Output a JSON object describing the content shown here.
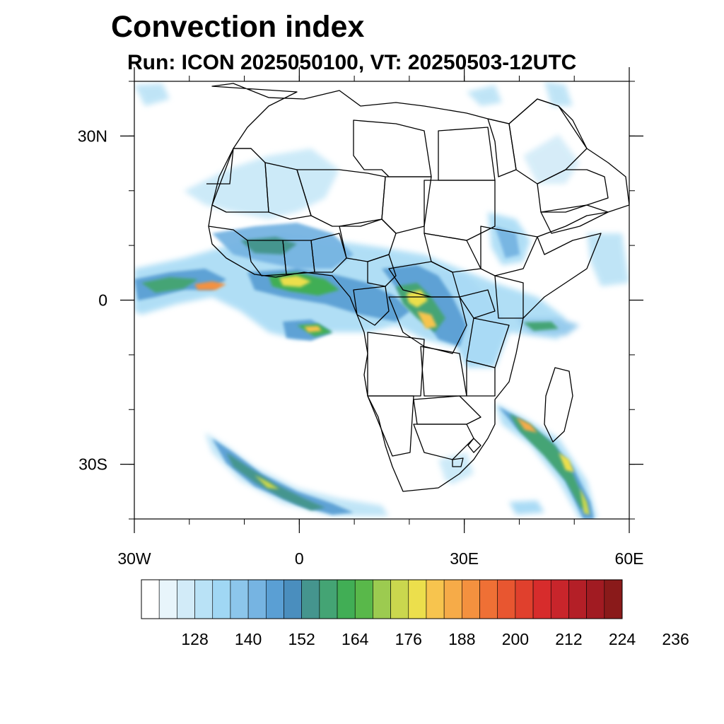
{
  "title": "Convection index",
  "subtitle": "Run: ICON 2025050100,  VT: 20250503-12UTC",
  "axes": {
    "lon_range": [
      -30,
      60
    ],
    "lat_range": [
      -40,
      40
    ],
    "lon_ticks": [
      {
        "value": -30,
        "label": "30W"
      },
      {
        "value": 0,
        "label": "0"
      },
      {
        "value": 30,
        "label": "30E"
      },
      {
        "value": 60,
        "label": "60E"
      }
    ],
    "lat_ticks": [
      {
        "value": 30,
        "label": "30N"
      },
      {
        "value": 0,
        "label": "0"
      },
      {
        "value": -30,
        "label": "30S"
      }
    ],
    "lon_minor_step": 10,
    "lat_minor_step": 10
  },
  "colorbar": {
    "colors": [
      "#ffffff",
      "#e8f5fb",
      "#d2ebf8",
      "#b9e2f6",
      "#a0d7f4",
      "#8cc6eb",
      "#76b4e2",
      "#5a9fd4",
      "#4a8ebe",
      "#45958e",
      "#44a474",
      "#41ae55",
      "#59b84a",
      "#9ccb50",
      "#cad74e",
      "#ecdf4c",
      "#f7c44e",
      "#f6ab48",
      "#f4913f",
      "#ef7035",
      "#e85630",
      "#e0402d",
      "#d72c2c",
      "#c8252b",
      "#b41f27",
      "#a11b22",
      "#8a1a1a"
    ],
    "labels": [
      "128",
      "140",
      "152",
      "164",
      "176",
      "188",
      "200",
      "212",
      "224",
      "236"
    ]
  }
}
